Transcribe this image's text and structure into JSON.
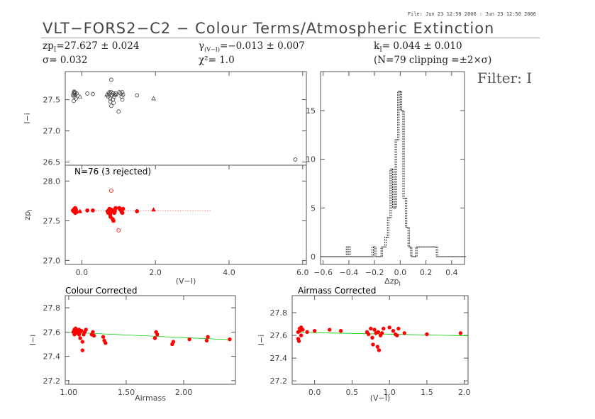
{
  "header": {
    "file_info": "File: Jun 23 12:50 2006 : Jun 23 12:50 2006",
    "title": "VLT−FORS2−C2 − Colour Terms/Atmospheric Extinction",
    "zp_label": "zp",
    "zp_sub": "I",
    "zp_value": "=27.627 ± 0.024",
    "sigma": "σ= 0.032",
    "gamma_label": "γ",
    "gamma_sub": "(V−I)",
    "gamma_value": "=−0.013 ± 0.007",
    "chi2": "χ²= 1.0",
    "k_label": "k",
    "k_sub": "I",
    "k_value": "= 0.044 ± 0.010",
    "clipping": "(N=79 clipping =±2×σ)",
    "filter": "Filter: I"
  },
  "colors": {
    "axis": "#555555",
    "points": "#ff0000",
    "fit_line": "#00cc00",
    "raw_points": "#444444",
    "ref_line": "#ff6666"
  },
  "chart_data": [
    {
      "id": "raw",
      "type": "scatter",
      "ylabel": "I−i",
      "ylim": [
        26.45,
        27.95
      ],
      "xlim": [
        -0.45,
        6.1
      ],
      "yticks": [
        "26.5",
        "27.0",
        "27.5"
      ],
      "yticks_v": [
        26.5,
        27.0,
        27.5
      ],
      "circles": [
        [
          -0.22,
          27.6
        ],
        [
          -0.2,
          27.62
        ],
        [
          -0.18,
          27.58
        ],
        [
          -0.2,
          27.55
        ],
        [
          -0.16,
          27.52
        ],
        [
          -0.22,
          27.48
        ],
        [
          -0.18,
          27.61
        ],
        [
          -0.14,
          27.6
        ],
        [
          -0.24,
          27.57
        ],
        [
          -0.21,
          27.63
        ],
        [
          0.15,
          27.6
        ],
        [
          0.3,
          27.59
        ],
        [
          0.7,
          27.58
        ],
        [
          0.72,
          27.55
        ],
        [
          0.75,
          27.6
        ],
        [
          0.77,
          27.52
        ],
        [
          0.78,
          27.47
        ],
        [
          0.8,
          27.62
        ],
        [
          0.8,
          27.82
        ],
        [
          0.82,
          27.57
        ],
        [
          0.84,
          27.5
        ],
        [
          0.85,
          27.6
        ],
        [
          0.86,
          27.45
        ],
        [
          0.88,
          27.55
        ],
        [
          0.9,
          27.58
        ],
        [
          0.92,
          27.6
        ],
        [
          0.75,
          27.62
        ],
        [
          0.8,
          27.4
        ],
        [
          1.0,
          27.31
        ],
        [
          1.05,
          27.6
        ],
        [
          1.08,
          27.55
        ],
        [
          1.1,
          27.5
        ],
        [
          1.12,
          27.58
        ],
        [
          1.02,
          27.62
        ],
        [
          1.5,
          27.57
        ],
        [
          1.1,
          27.62
        ],
        [
          5.8,
          26.54
        ]
      ],
      "triangles": [
        [
          -0.05,
          27.55
        ],
        [
          1.95,
          27.52
        ],
        [
          0.68,
          27.58
        ],
        [
          0.92,
          27.58
        ]
      ]
    },
    {
      "id": "zp",
      "type": "scatter",
      "annotation": "N=76 (3 rejected)",
      "ylabel": "zp",
      "ylabel_sub": "I",
      "xlabel": "(V−I)",
      "ylim": [
        26.95,
        28.2
      ],
      "xlim": [
        -0.45,
        6.1
      ],
      "yticks": [
        "27.0",
        "27.5",
        "28.0"
      ],
      "yticks_v": [
        27.0,
        27.5,
        28.0
      ],
      "xticks": [
        "0.0",
        "2.0",
        "4.0",
        "6.0"
      ],
      "xticks_v": [
        0,
        2,
        4,
        6
      ],
      "ref_line": {
        "x0": -0.3,
        "x1": 3.5,
        "y": 27.627
      },
      "points": [
        [
          -0.22,
          27.62
        ],
        [
          -0.2,
          27.65
        ],
        [
          -0.18,
          27.6
        ],
        [
          -0.2,
          27.63
        ],
        [
          -0.16,
          27.64
        ],
        [
          -0.22,
          27.62
        ],
        [
          -0.18,
          27.66
        ],
        [
          -0.14,
          27.61
        ],
        [
          -0.24,
          27.63
        ],
        [
          0.15,
          27.63
        ],
        [
          0.3,
          27.63
        ],
        [
          0.7,
          27.62
        ],
        [
          0.72,
          27.6
        ],
        [
          0.75,
          27.65
        ],
        [
          0.77,
          27.58
        ],
        [
          0.78,
          27.55
        ],
        [
          0.8,
          27.64
        ],
        [
          0.82,
          27.62
        ],
        [
          0.84,
          27.52
        ],
        [
          0.85,
          27.63
        ],
        [
          0.86,
          27.5
        ],
        [
          0.88,
          27.6
        ],
        [
          0.9,
          27.62
        ],
        [
          0.92,
          27.66
        ],
        [
          1.05,
          27.64
        ],
        [
          1.08,
          27.61
        ],
        [
          1.1,
          27.6
        ],
        [
          1.12,
          27.65
        ],
        [
          1.02,
          27.66
        ],
        [
          1.5,
          27.62
        ]
      ],
      "triangles": [
        [
          -0.05,
          27.62
        ],
        [
          1.95,
          27.64
        ]
      ],
      "rejected": [
        [
          0.8,
          27.88
        ],
        [
          1.0,
          27.38
        ]
      ]
    },
    {
      "id": "hist",
      "type": "bar",
      "xlabel": "Δzp",
      "xlabel_sub": "I",
      "xlim": [
        -0.62,
        0.5
      ],
      "ylim": [
        -0.8,
        19
      ],
      "xticks": [
        "−0.6",
        "−0.4",
        "−0.2",
        "0.0",
        "0.2",
        "0.4"
      ],
      "xticks_v": [
        -0.6,
        -0.4,
        -0.2,
        0,
        0.2,
        0.4
      ],
      "yticks": [
        "0",
        "5",
        "10",
        "15"
      ],
      "yticks_v": [
        0,
        5,
        10,
        15
      ],
      "bin_edges": [
        -0.62,
        -0.42,
        -0.4,
        -0.22,
        -0.2,
        -0.15,
        -0.12,
        -0.1,
        -0.08,
        -0.06,
        -0.04,
        -0.02,
        0.0,
        0.02,
        0.04,
        0.06,
        0.08,
        0.1,
        0.12,
        0.28,
        0.3,
        0.5
      ],
      "counts": [
        0,
        1,
        0,
        1,
        0,
        1,
        2,
        4,
        9,
        5,
        12,
        17,
        15,
        6,
        3,
        1,
        0,
        0,
        1,
        0,
        0
      ]
    },
    {
      "id": "airmass",
      "type": "scatter",
      "title": "Colour Corrected",
      "ylabel": "I−i",
      "xlabel": "Airmass",
      "xlim": [
        0.97,
        2.45
      ],
      "ylim": [
        27.17,
        27.9
      ],
      "xticks": [
        "1.00",
        "1.50",
        "2.00"
      ],
      "xticks_v": [
        1.0,
        1.5,
        2.0
      ],
      "yticks": [
        "27.2",
        "27.4",
        "27.6",
        "27.8"
      ],
      "yticks_v": [
        27.2,
        27.4,
        27.6,
        27.8
      ],
      "fit": {
        "x0": 1.0,
        "y0": 27.598,
        "x1": 2.4,
        "y1": 27.537
      },
      "points": [
        [
          1.04,
          27.6
        ],
        [
          1.05,
          27.62
        ],
        [
          1.05,
          27.58
        ],
        [
          1.06,
          27.59
        ],
        [
          1.06,
          27.63
        ],
        [
          1.07,
          27.61
        ],
        [
          1.08,
          27.6
        ],
        [
          1.09,
          27.62
        ],
        [
          1.09,
          27.58
        ],
        [
          1.1,
          27.55
        ],
        [
          1.1,
          27.6
        ],
        [
          1.11,
          27.61
        ],
        [
          1.12,
          27.52
        ],
        [
          1.12,
          27.45
        ],
        [
          1.13,
          27.58
        ],
        [
          1.14,
          27.6
        ],
        [
          1.15,
          27.62
        ],
        [
          1.2,
          27.58
        ],
        [
          1.21,
          27.6
        ],
        [
          1.22,
          27.57
        ],
        [
          1.3,
          27.56
        ],
        [
          1.31,
          27.53
        ],
        [
          1.32,
          27.51
        ],
        [
          1.75,
          27.55
        ],
        [
          1.76,
          27.6
        ],
        [
          1.77,
          27.58
        ],
        [
          1.9,
          27.5
        ],
        [
          1.91,
          27.52
        ],
        [
          2.05,
          27.54
        ],
        [
          2.2,
          27.53
        ],
        [
          2.21,
          27.56
        ],
        [
          2.4,
          27.54
        ]
      ]
    },
    {
      "id": "colour",
      "type": "scatter",
      "title": "Airmass Corrected",
      "ylabel": "I−i",
      "xlabel": "(V−I)",
      "xlim": [
        -0.3,
        2.05
      ],
      "ylim": [
        27.17,
        27.95
      ],
      "xticks": [
        "0.0",
        "0.5",
        "1.0",
        "1.5",
        "2.0"
      ],
      "xticks_v": [
        0,
        0.5,
        1.0,
        1.5,
        2.0
      ],
      "yticks": [
        "27.2",
        "27.4",
        "27.6",
        "27.8"
      ],
      "yticks_v": [
        27.2,
        27.4,
        27.6,
        27.8
      ],
      "fit": {
        "x0": -0.25,
        "y0": 27.627,
        "x1": 2.05,
        "y1": 27.597
      },
      "points": [
        [
          -0.22,
          27.63
        ],
        [
          -0.2,
          27.66
        ],
        [
          -0.18,
          27.6
        ],
        [
          -0.2,
          27.64
        ],
        [
          -0.16,
          27.65
        ],
        [
          -0.22,
          27.57
        ],
        [
          -0.18,
          27.67
        ],
        [
          -0.21,
          27.55
        ],
        [
          -0.1,
          27.63
        ],
        [
          0.0,
          27.64
        ],
        [
          0.2,
          27.65
        ],
        [
          0.35,
          27.64
        ],
        [
          0.7,
          27.63
        ],
        [
          0.72,
          27.61
        ],
        [
          0.75,
          27.66
        ],
        [
          0.77,
          27.58
        ],
        [
          0.78,
          27.52
        ],
        [
          0.8,
          27.65
        ],
        [
          0.82,
          27.62
        ],
        [
          0.84,
          27.5
        ],
        [
          0.85,
          27.63
        ],
        [
          0.86,
          27.47
        ],
        [
          0.88,
          27.6
        ],
        [
          0.9,
          27.62
        ],
        [
          0.92,
          27.66
        ],
        [
          1.0,
          27.67
        ],
        [
          1.05,
          27.64
        ],
        [
          1.08,
          27.61
        ],
        [
          1.1,
          27.6
        ],
        [
          1.12,
          27.66
        ],
        [
          1.2,
          27.62
        ],
        [
          1.5,
          27.61
        ],
        [
          1.95,
          27.62
        ]
      ]
    }
  ]
}
